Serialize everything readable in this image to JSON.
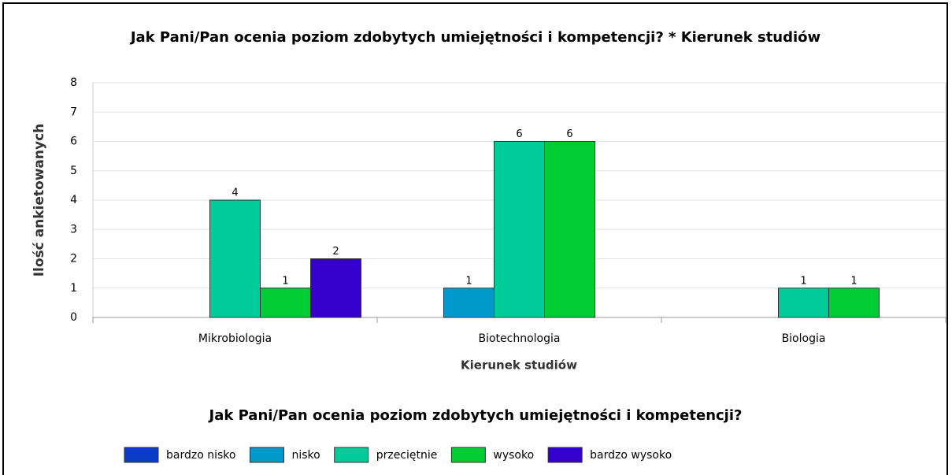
{
  "chart_data": {
    "type": "bar",
    "title": "Jak Pani/Pan ocenia poziom zdobytych umiejętności i kompetencji? * Kierunek studiów",
    "x_label": "Kierunek studiów",
    "y_label": "Ilość ankietowanych",
    "legend_title": "Jak Pani/Pan ocenia poziom zdobytych umiejętności i kompetencji?",
    "categories": [
      "Mikrobiologia",
      "Biotechnologia",
      "Biologia"
    ],
    "series": [
      {
        "name": "bardzo nisko",
        "color": "#0a3cc8",
        "values": [
          null,
          null,
          null
        ]
      },
      {
        "name": "nisko",
        "color": "#0099cc",
        "values": [
          null,
          1,
          null
        ]
      },
      {
        "name": "przeciętnie",
        "color": "#00cc99",
        "values": [
          4,
          6,
          1
        ]
      },
      {
        "name": "wysoko",
        "color": "#00cc33",
        "values": [
          1,
          6,
          1
        ]
      },
      {
        "name": "bardzo wysoko",
        "color": "#3300cc",
        "values": [
          2,
          null,
          null
        ]
      }
    ],
    "ylim": [
      0,
      8
    ],
    "yticks": [
      0,
      1,
      2,
      3,
      4,
      5,
      6,
      7,
      8
    ],
    "grid": true,
    "legend": "bottom"
  }
}
